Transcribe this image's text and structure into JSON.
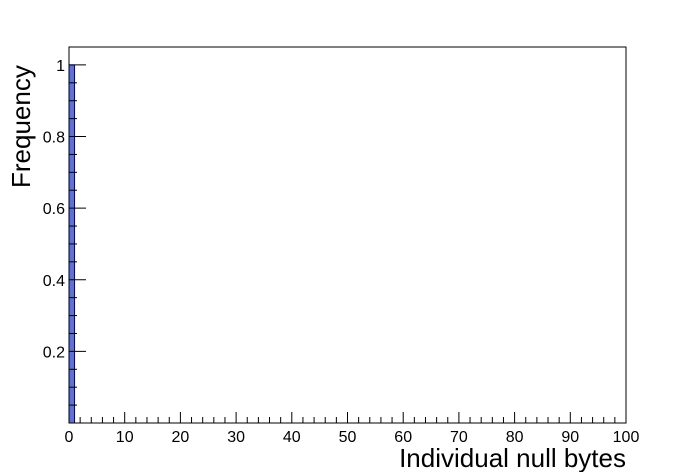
{
  "chart_data": {
    "type": "bar",
    "xlabel": "Individual null bytes",
    "ylabel": "Frequency",
    "xlim": [
      0,
      100
    ],
    "ylim": [
      0,
      1.05
    ],
    "x_ticks": [
      0,
      10,
      20,
      30,
      40,
      50,
      60,
      70,
      80,
      90,
      100
    ],
    "y_ticks": [
      0.2,
      0.4,
      0.6,
      0.8,
      1
    ],
    "bin_width": 1,
    "bins": [
      {
        "x_low": 0,
        "x_high": 1,
        "value": 1.0
      }
    ],
    "bar_color": "#6270d1",
    "bar_edge_color": "#000080",
    "grid": false,
    "legend": "none"
  }
}
